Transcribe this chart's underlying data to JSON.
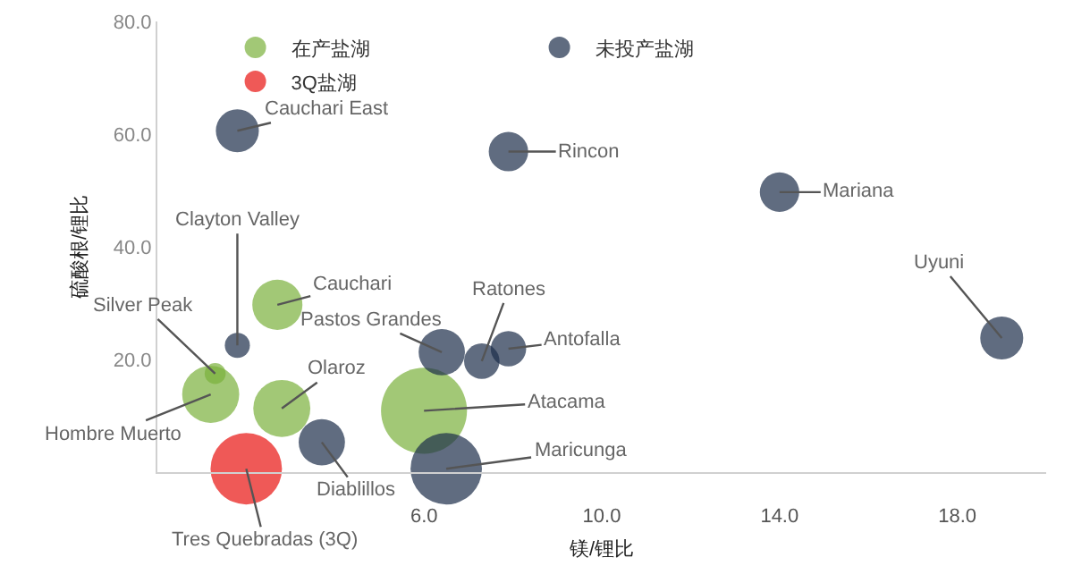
{
  "chart_data": {
    "type": "bubble",
    "xlabel": "镁/锂比",
    "ylabel": "硫酸根/锂比",
    "xlim": [
      0,
      20
    ],
    "xticks": [
      {
        "value": 6,
        "label": "6.0"
      },
      {
        "value": 10,
        "label": "10.0"
      },
      {
        "value": 14,
        "label": "14.0"
      },
      {
        "value": 18,
        "label": "18.0"
      }
    ],
    "ylim": [
      0,
      80
    ],
    "yticks": [
      {
        "value": 20,
        "label": "20.0"
      },
      {
        "value": 40,
        "label": "40.0"
      },
      {
        "value": 60,
        "label": "60.0"
      },
      {
        "value": 80,
        "label": "80.0"
      }
    ],
    "grid": false,
    "legend": "top",
    "series": [
      {
        "name": "在产盐湖",
        "color": "#7ab03c",
        "x": [
          2.7,
          1.3,
          1.2,
          2.8,
          6.0
        ],
        "values": [
          29.7,
          17.5,
          13.8,
          11.3,
          10.9
        ],
        "sizes": [
          0.34,
          0.06,
          0.44,
          0.44,
          1
        ]
      },
      {
        "name": "未投产盐湖",
        "color": "#1c2d4a",
        "x": [
          1.8,
          7.9,
          14.0,
          19.0,
          1.8,
          3.7,
          6.4,
          7.3,
          7.9,
          6.5
        ],
        "values": [
          60.6,
          56.9,
          49.7,
          23.8,
          22.5,
          5.3,
          21.3,
          19.7,
          21.9,
          0.6
        ],
        "sizes": [
          0.25,
          0.21,
          0.21,
          0.25,
          0.085,
          0.29,
          0.29,
          0.17,
          0.17,
          0.69
        ]
      },
      {
        "name": "3Q盐湖",
        "color": "#e8120f",
        "x": [
          2.0
        ],
        "values": [
          0.6
        ],
        "sizes": [
          0.69
        ]
      }
    ],
    "annotations": [
      {
        "text": "Cauchari East",
        "x": 1.8,
        "y": 60.6
      },
      {
        "text": "Rincon",
        "x": 7.9,
        "y": 56.9
      },
      {
        "text": "Mariana",
        "x": 14.0,
        "y": 49.7
      },
      {
        "text": "Uyuni",
        "x": 19.0,
        "y": 23.8
      },
      {
        "text": "Clayton Valley",
        "x": 1.8,
        "y": 22.5
      },
      {
        "text": "Cauchari",
        "x": 2.7,
        "y": 29.7
      },
      {
        "text": "Silver Peak",
        "x": 1.3,
        "y": 17.5
      },
      {
        "text": "Hombre Muerto",
        "x": 1.2,
        "y": 13.8
      },
      {
        "text": "Olaroz",
        "x": 2.8,
        "y": 11.3
      },
      {
        "text": "Diablillos",
        "x": 3.7,
        "y": 5.3
      },
      {
        "text": "Tres Quebradas (3Q)",
        "x": 2.0,
        "y": 0.6
      },
      {
        "text": "Pastos Grandes",
        "x": 6.4,
        "y": 21.3
      },
      {
        "text": "Ratones",
        "x": 7.3,
        "y": 19.7
      },
      {
        "text": "Antofalla",
        "x": 7.9,
        "y": 21.9
      },
      {
        "text": "Atacama",
        "x": 6.0,
        "y": 10.9
      },
      {
        "text": "Maricunga",
        "x": 6.5,
        "y": 0.6
      }
    ]
  }
}
